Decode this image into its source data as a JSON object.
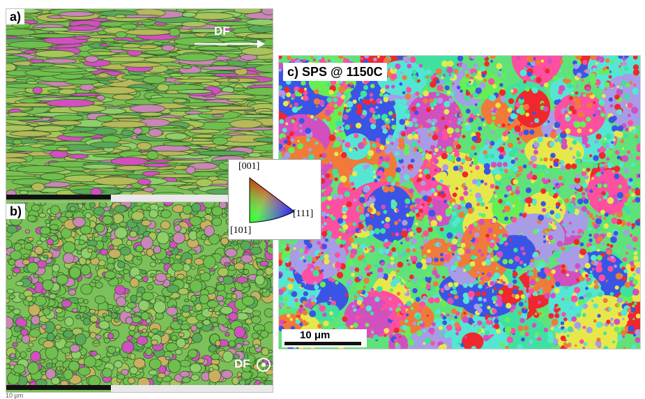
{
  "panels": {
    "a": {
      "label": "a)",
      "direction_label": "DF"
    },
    "b": {
      "label": "b)",
      "direction_label": "DF",
      "bottom_scale_text": "10 μm"
    },
    "c": {
      "label": "c)  SPS @ 1150C",
      "scale_text": "10 μm"
    }
  },
  "ipf_legend": {
    "top": "[001]",
    "left": "[101]",
    "right": "[111]"
  },
  "palette": {
    "green": "#6fbf4e",
    "olive": "#a8c45a",
    "pink": "#c986b6",
    "magenta": "#d24fc0",
    "blue": "#3a55e6",
    "red": "#f0282d",
    "orange": "#f07a3a",
    "yellow": "#e6e84a",
    "cyan": "#54e6d4",
    "lime": "#66ee55",
    "lavender": "#a89ce6"
  }
}
